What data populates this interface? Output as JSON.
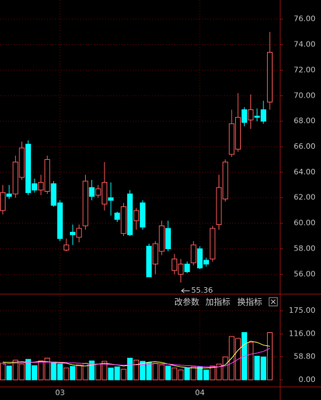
{
  "chart_data": {
    "type": "candlestick",
    "categories": [
      null,
      null,
      null,
      null,
      null,
      null,
      null,
      null,
      null,
      "03",
      null,
      null,
      null,
      null,
      null,
      null,
      null,
      null,
      null,
      null,
      null,
      null,
      null,
      null,
      null,
      null,
      null,
      null,
      null,
      null,
      null,
      "04",
      null,
      null,
      null,
      null,
      null,
      null,
      null,
      null,
      null,
      null,
      null
    ],
    "open": [
      61.0,
      62.3,
      62.3,
      63.6,
      66.2,
      63.1,
      62.6,
      62.5,
      63.1,
      61.6,
      57.9,
      59.3,
      58.9,
      59.8,
      62.8,
      62.2,
      61.5,
      62.0,
      60.8,
      59.2,
      62.3,
      60.2,
      61.6,
      58.2,
      56.8,
      57.8,
      59.6,
      56.3,
      56.0,
      56.8,
      56.9,
      58.0,
      57.1,
      57.2,
      59.9,
      61.9,
      65.4,
      65.8,
      68.9,
      68.1,
      68.4,
      68.9,
      69.5
    ],
    "high": [
      63.0,
      63.0,
      65.3,
      66.4,
      66.5,
      63.5,
      63.8,
      65.3,
      63.3,
      61.8,
      58.8,
      59.9,
      59.9,
      63.8,
      63.4,
      63.0,
      64.8,
      63.2,
      60.9,
      61.6,
      62.6,
      61.2,
      61.8,
      58.4,
      58.6,
      60.2,
      60.2,
      57.6,
      57.2,
      57.0,
      58.6,
      58.2,
      57.3,
      59.8,
      63.8,
      65.0,
      68.9,
      70.2,
      69.1,
      70.1,
      69.0,
      69.6,
      75.0
    ],
    "low": [
      60.7,
      61.9,
      62.0,
      63.4,
      62.2,
      62.4,
      62.2,
      62.3,
      61.3,
      58.6,
      57.8,
      58.3,
      58.5,
      59.5,
      61.8,
      62.0,
      61.0,
      60.6,
      60.1,
      59.0,
      59.0,
      59.5,
      59.5,
      55.8,
      56.0,
      57.5,
      57.8,
      56.0,
      55.36,
      56.1,
      56.7,
      56.4,
      56.6,
      57.0,
      59.5,
      61.7,
      65.2,
      65.6,
      67.6,
      67.4,
      68.0,
      67.8,
      68.9
    ],
    "close": [
      62.4,
      62.1,
      64.8,
      65.9,
      62.4,
      62.6,
      63.2,
      65.0,
      61.4,
      58.8,
      58.3,
      59.1,
      59.6,
      63.3,
      62.1,
      62.7,
      63.2,
      61.8,
      60.3,
      61.3,
      59.1,
      61.0,
      59.7,
      55.8,
      58.4,
      59.8,
      58.0,
      57.2,
      56.8,
      56.2,
      58.3,
      56.5,
      56.8,
      59.6,
      62.8,
      64.8,
      67.8,
      68.3,
      67.9,
      68.9,
      68.3,
      68.0,
      73.4
    ],
    "up_color": "#ff5c5c",
    "down_color": "#00ffff",
    "low_annotation": {
      "index": 28,
      "label": "55.36"
    },
    "ylim": [
      54.5,
      77.5
    ],
    "yticks": [
      {
        "value": 56,
        "label": "56.00"
      },
      {
        "value": 58,
        "label": "58.00"
      },
      {
        "value": 60,
        "label": "60.00"
      },
      {
        "value": 62,
        "label": "62.00"
      },
      {
        "value": 64,
        "label": "64.00"
      },
      {
        "value": 66,
        "label": "66.00"
      },
      {
        "value": 68,
        "label": "68.00"
      },
      {
        "value": 70,
        "label": "70.00"
      },
      {
        "value": 72,
        "label": "72.00"
      },
      {
        "value": 74,
        "label": "74.00"
      },
      {
        "value": 76,
        "label": "76.00"
      }
    ],
    "volume": [
      42,
      35,
      50,
      40,
      52,
      36,
      48,
      55,
      45,
      40,
      30,
      34,
      38,
      42,
      48,
      40,
      47,
      30,
      33,
      27,
      55,
      50,
      47,
      44,
      42,
      38,
      35,
      30,
      25,
      30,
      33,
      33,
      25,
      35,
      40,
      58,
      110,
      105,
      120,
      95,
      60,
      58,
      120
    ],
    "volume_ma": [
      {
        "color": "#ffff66",
        "values": [
          45,
          44,
          45,
          46,
          44,
          45,
          47,
          46,
          44,
          43,
          42,
          38,
          36,
          35,
          38,
          40,
          42,
          40,
          38,
          35,
          37,
          39,
          41,
          45,
          46,
          44,
          40,
          36,
          33,
          31,
          30,
          30,
          30,
          31,
          33,
          38,
          55,
          75,
          90,
          98,
          95,
          88,
          85
        ]
      },
      {
        "color": "#ff40ff",
        "values": [
          40,
          41,
          42,
          43,
          44,
          44,
          45,
          45,
          45,
          45,
          44,
          43,
          42,
          41,
          40,
          40,
          40,
          39,
          38,
          37,
          38,
          38,
          39,
          40,
          41,
          41,
          40,
          39,
          37,
          36,
          35,
          34,
          33,
          33,
          33,
          35,
          42,
          52,
          60,
          65,
          68,
          72,
          80
        ]
      }
    ],
    "y2lim": [
      -16,
      212
    ],
    "y2ticks": [
      {
        "value": 0,
        "label": "0.00"
      },
      {
        "value": 58.8,
        "label": "58.80"
      },
      {
        "value": 116,
        "label": "116.00"
      },
      {
        "value": 175,
        "label": "175.00"
      }
    ],
    "toolbar": [
      "改参数",
      "加指标",
      "换指标"
    ]
  }
}
